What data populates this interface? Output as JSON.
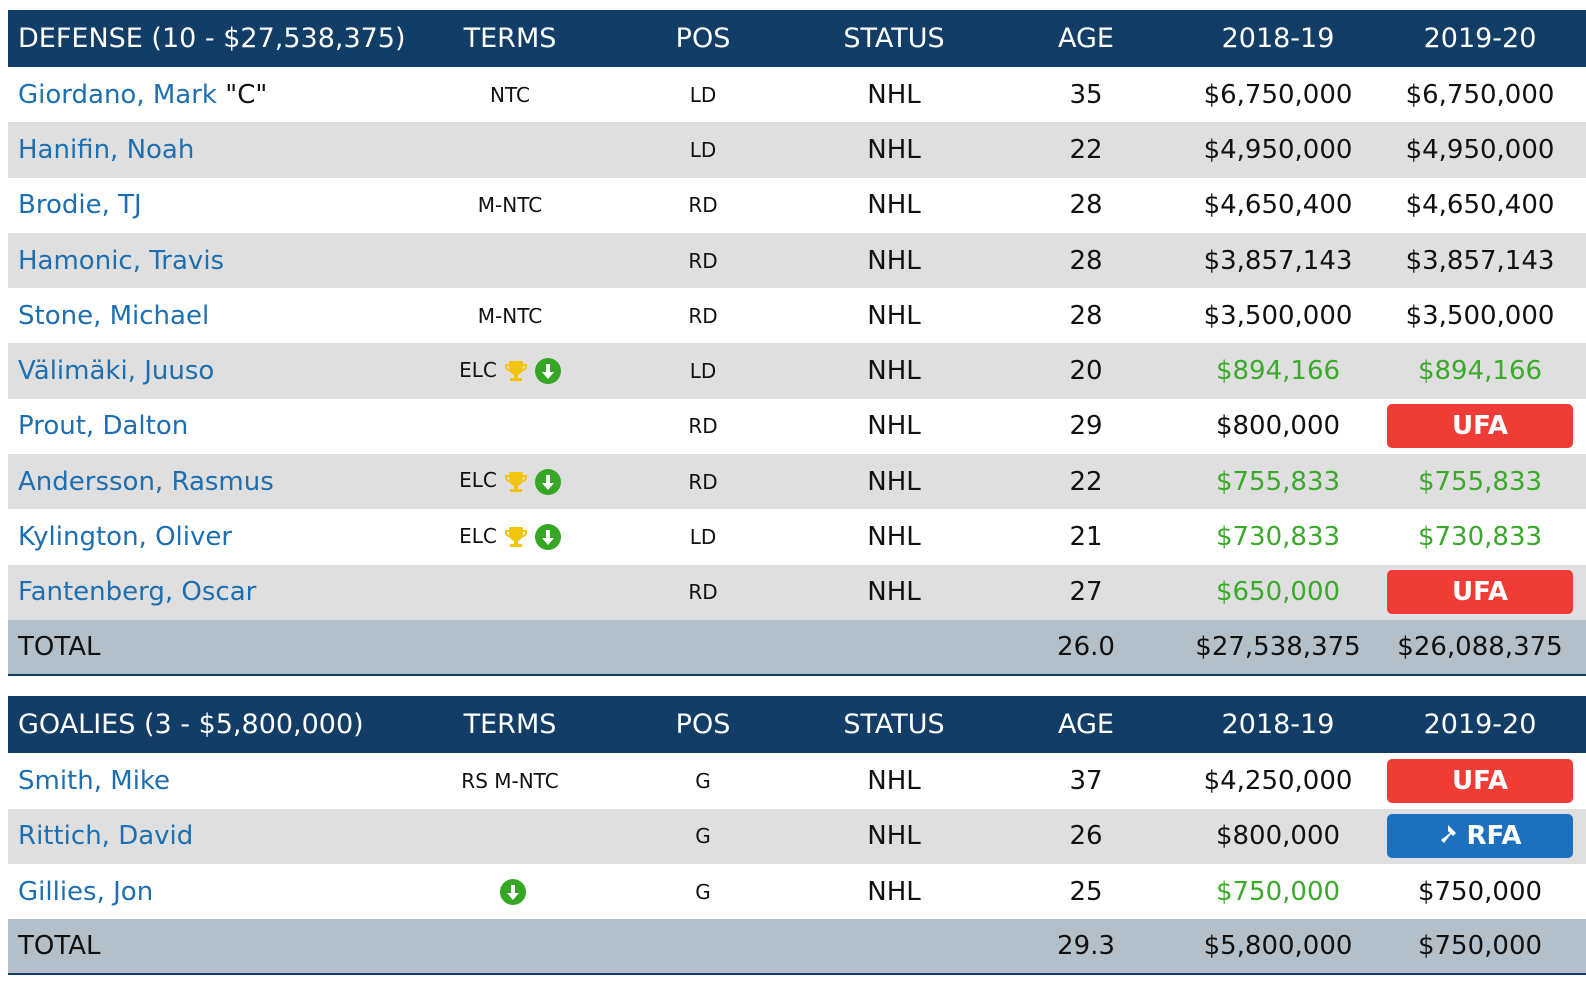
{
  "colors": {
    "header_bg": "#123d67",
    "link": "#1d6fb2",
    "green": "#3aaa2a",
    "ufa": "#f03c36",
    "rfa": "#1d70bd",
    "total_bg": "#b3c0ca",
    "stripe": "#dfdfdf"
  },
  "columns": {
    "terms": "TERMS",
    "pos": "POS",
    "status": "STATUS",
    "age": "AGE",
    "y1": "2018-19",
    "y2": "2019-20"
  },
  "defense": {
    "title": "DEFENSE (10 - $27,538,375)",
    "rows": [
      {
        "name": "Giordano, Mark",
        "captain": "\"C\"",
        "terms": "NTC",
        "icons": [],
        "pos": "LD",
        "status": "NHL",
        "age": "35",
        "y1": "$6,750,000",
        "y1_green": false,
        "y2": "$6,750,000",
        "y2_type": "text",
        "y2_green": false
      },
      {
        "name": "Hanifin, Noah",
        "captain": "",
        "terms": "",
        "icons": [],
        "pos": "LD",
        "status": "NHL",
        "age": "22",
        "y1": "$4,950,000",
        "y1_green": false,
        "y2": "$4,950,000",
        "y2_type": "text",
        "y2_green": false
      },
      {
        "name": "Brodie, TJ",
        "captain": "",
        "terms": "M-NTC",
        "icons": [],
        "pos": "RD",
        "status": "NHL",
        "age": "28",
        "y1": "$4,650,400",
        "y1_green": false,
        "y2": "$4,650,400",
        "y2_type": "text",
        "y2_green": false
      },
      {
        "name": "Hamonic, Travis",
        "captain": "",
        "terms": "",
        "icons": [],
        "pos": "RD",
        "status": "NHL",
        "age": "28",
        "y1": "$3,857,143",
        "y1_green": false,
        "y2": "$3,857,143",
        "y2_type": "text",
        "y2_green": false
      },
      {
        "name": "Stone, Michael",
        "captain": "",
        "terms": "M-NTC",
        "icons": [],
        "pos": "RD",
        "status": "NHL",
        "age": "28",
        "y1": "$3,500,000",
        "y1_green": false,
        "y2": "$3,500,000",
        "y2_type": "text",
        "y2_green": false
      },
      {
        "name": "Välimäki, Juuso",
        "captain": "",
        "terms": "ELC",
        "icons": [
          "trophy-icon",
          "download-icon"
        ],
        "pos": "LD",
        "status": "NHL",
        "age": "20",
        "y1": "$894,166",
        "y1_green": true,
        "y2": "$894,166",
        "y2_type": "text",
        "y2_green": true
      },
      {
        "name": "Prout, Dalton",
        "captain": "",
        "terms": "",
        "icons": [],
        "pos": "RD",
        "status": "NHL",
        "age": "29",
        "y1": "$800,000",
        "y1_green": false,
        "y2": "UFA",
        "y2_type": "ufa",
        "y2_green": false
      },
      {
        "name": "Andersson, Rasmus",
        "captain": "",
        "terms": "ELC",
        "icons": [
          "trophy-icon",
          "download-icon"
        ],
        "pos": "RD",
        "status": "NHL",
        "age": "22",
        "y1": "$755,833",
        "y1_green": true,
        "y2": "$755,833",
        "y2_type": "text",
        "y2_green": true
      },
      {
        "name": "Kylington, Oliver",
        "captain": "",
        "terms": "ELC",
        "icons": [
          "trophy-icon",
          "download-icon"
        ],
        "pos": "LD",
        "status": "NHL",
        "age": "21",
        "y1": "$730,833",
        "y1_green": true,
        "y2": "$730,833",
        "y2_type": "text",
        "y2_green": true
      },
      {
        "name": "Fantenberg, Oscar",
        "captain": "",
        "terms": "",
        "icons": [],
        "pos": "RD",
        "status": "NHL",
        "age": "27",
        "y1": "$650,000",
        "y1_green": true,
        "y2": "UFA",
        "y2_type": "ufa",
        "y2_green": false
      }
    ],
    "total": {
      "label": "TOTAL",
      "age": "26.0",
      "y1": "$27,538,375",
      "y2": "$26,088,375"
    }
  },
  "goalies": {
    "title": "GOALIES (3 - $5,800,000)",
    "rows": [
      {
        "name": "Smith, Mike",
        "captain": "",
        "terms": "RS M-NTC",
        "icons": [],
        "pos": "G",
        "status": "NHL",
        "age": "37",
        "y1": "$4,250,000",
        "y1_green": false,
        "y2": "UFA",
        "y2_type": "ufa",
        "y2_green": false
      },
      {
        "name": "Rittich, David",
        "captain": "",
        "terms": "",
        "icons": [],
        "pos": "G",
        "status": "NHL",
        "age": "26",
        "y1": "$800,000",
        "y1_green": false,
        "y2": "RFA",
        "y2_type": "rfa",
        "y2_green": false
      },
      {
        "name": "Gillies, Jon",
        "captain": "",
        "terms": "",
        "icons": [
          "download-icon"
        ],
        "pos": "G",
        "status": "NHL",
        "age": "25",
        "y1": "$750,000",
        "y1_green": true,
        "y2": "$750,000",
        "y2_type": "text",
        "y2_green": false
      }
    ],
    "total": {
      "label": "TOTAL",
      "age": "29.3",
      "y1": "$5,800,000",
      "y2": "$750,000"
    }
  }
}
